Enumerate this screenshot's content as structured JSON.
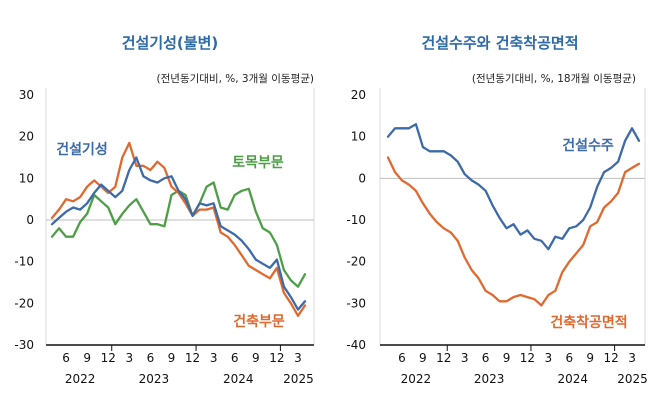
{
  "colors": {
    "blue": "#3d6aa8",
    "orange": "#e0692f",
    "green": "#4e9e47",
    "title": "#2d6aa6"
  },
  "chart_data": [
    {
      "type": "line",
      "title": "건설기성(불변)",
      "note": "(전년동기대비, %, 3개월 이동평균)",
      "ylim": [
        -30,
        30
      ],
      "yticks": [
        "30",
        "20",
        "10",
        "0",
        "-10",
        "-20",
        "-30"
      ],
      "x_month_labels": [
        "6",
        "9",
        "12",
        "3",
        "6",
        "9",
        "12",
        "3",
        "6",
        "9",
        "12",
        "3"
      ],
      "x_year_labels": [
        "2022",
        "2023",
        "2024",
        "2025"
      ],
      "x_start": "2022-04",
      "x_end": "2025-04",
      "series": [
        {
          "name": "건설기성",
          "color": "#3d6aa8",
          "values": [
            -1,
            0.5,
            2,
            3,
            2.5,
            4,
            6.5,
            8.5,
            7,
            5.5,
            7,
            12,
            15,
            10.5,
            9.5,
            9,
            10,
            10.5,
            7,
            5,
            1,
            4,
            3.5,
            4,
            -1.5,
            -2.5,
            -3.5,
            -5,
            -7,
            -9.5,
            -10.5,
            -11.5,
            -9.5,
            -16,
            -18.5,
            -21.5,
            -19.5
          ]
        },
        {
          "name": "건축부문",
          "color": "#e0692f",
          "values": [
            0.5,
            2.5,
            5,
            4.5,
            5.5,
            8,
            9.5,
            8,
            6.5,
            8,
            15,
            18.5,
            13,
            13,
            12,
            14,
            12.5,
            8,
            6.5,
            4,
            1,
            2.5,
            2.5,
            3,
            -3,
            -4,
            -6,
            -8.5,
            -11,
            -12,
            -13,
            -14,
            -11.5,
            -17.5,
            -20,
            -23,
            -20.5
          ]
        },
        {
          "name": "토목부문",
          "color": "#4e9e47",
          "values": [
            -4,
            -2,
            -4,
            -4,
            -0.5,
            1.5,
            6,
            4.5,
            3,
            -1,
            1.5,
            3.5,
            5,
            2,
            -1,
            -1,
            -1.5,
            6,
            7,
            6,
            1,
            4,
            8,
            9,
            3,
            2.5,
            6,
            7,
            7.5,
            2,
            -2,
            -3,
            -6,
            -12,
            -14.5,
            -16,
            -13
          ]
        }
      ],
      "series_labels": [
        "건설기성",
        "토목부문",
        "건축부문"
      ]
    },
    {
      "type": "line",
      "title": "건설수주와 건축착공면적",
      "note": "(전년동기대비, %, 18개월 이동평균)",
      "ylim": [
        -40,
        20
      ],
      "yticks": [
        "20",
        "10",
        "0",
        "-10",
        "-20",
        "-30",
        "-40"
      ],
      "x_month_labels": [
        "6",
        "9",
        "12",
        "3",
        "6",
        "9",
        "12",
        "3",
        "6",
        "9",
        "12",
        "3"
      ],
      "x_year_labels": [
        "2022",
        "2023",
        "2024",
        "2025"
      ],
      "x_start": "2022-04",
      "x_end": "2025-04",
      "series": [
        {
          "name": "건설수주",
          "color": "#3d6aa8",
          "values": [
            10,
            12,
            12,
            12,
            13,
            7.5,
            6.5,
            6.5,
            6.5,
            5.5,
            4,
            1,
            -0.5,
            -1.5,
            -3,
            -6.5,
            -9.5,
            -12,
            -11,
            -13.5,
            -12.5,
            -14.5,
            -15,
            -17,
            -14,
            -14.5,
            -12,
            -11.5,
            -10,
            -7,
            -2,
            1.5,
            2.5,
            4,
            9,
            12,
            9
          ]
        },
        {
          "name": "건축착공면적",
          "color": "#e0692f",
          "values": [
            5,
            1.5,
            -0.5,
            -1.5,
            -3,
            -6,
            -8.5,
            -10.5,
            -12,
            -13,
            -15,
            -19,
            -22,
            -24,
            -27,
            -28,
            -29.5,
            -29.5,
            -28.5,
            -28,
            -28.5,
            -29,
            -30.5,
            -28,
            -27,
            -22.5,
            -20,
            -18,
            -16,
            -11.5,
            -10.5,
            -7,
            -5.5,
            -3.5,
            1.5,
            2.5,
            3.5
          ]
        }
      ],
      "series_labels": [
        "건설수주",
        "건축착공면적"
      ]
    }
  ]
}
